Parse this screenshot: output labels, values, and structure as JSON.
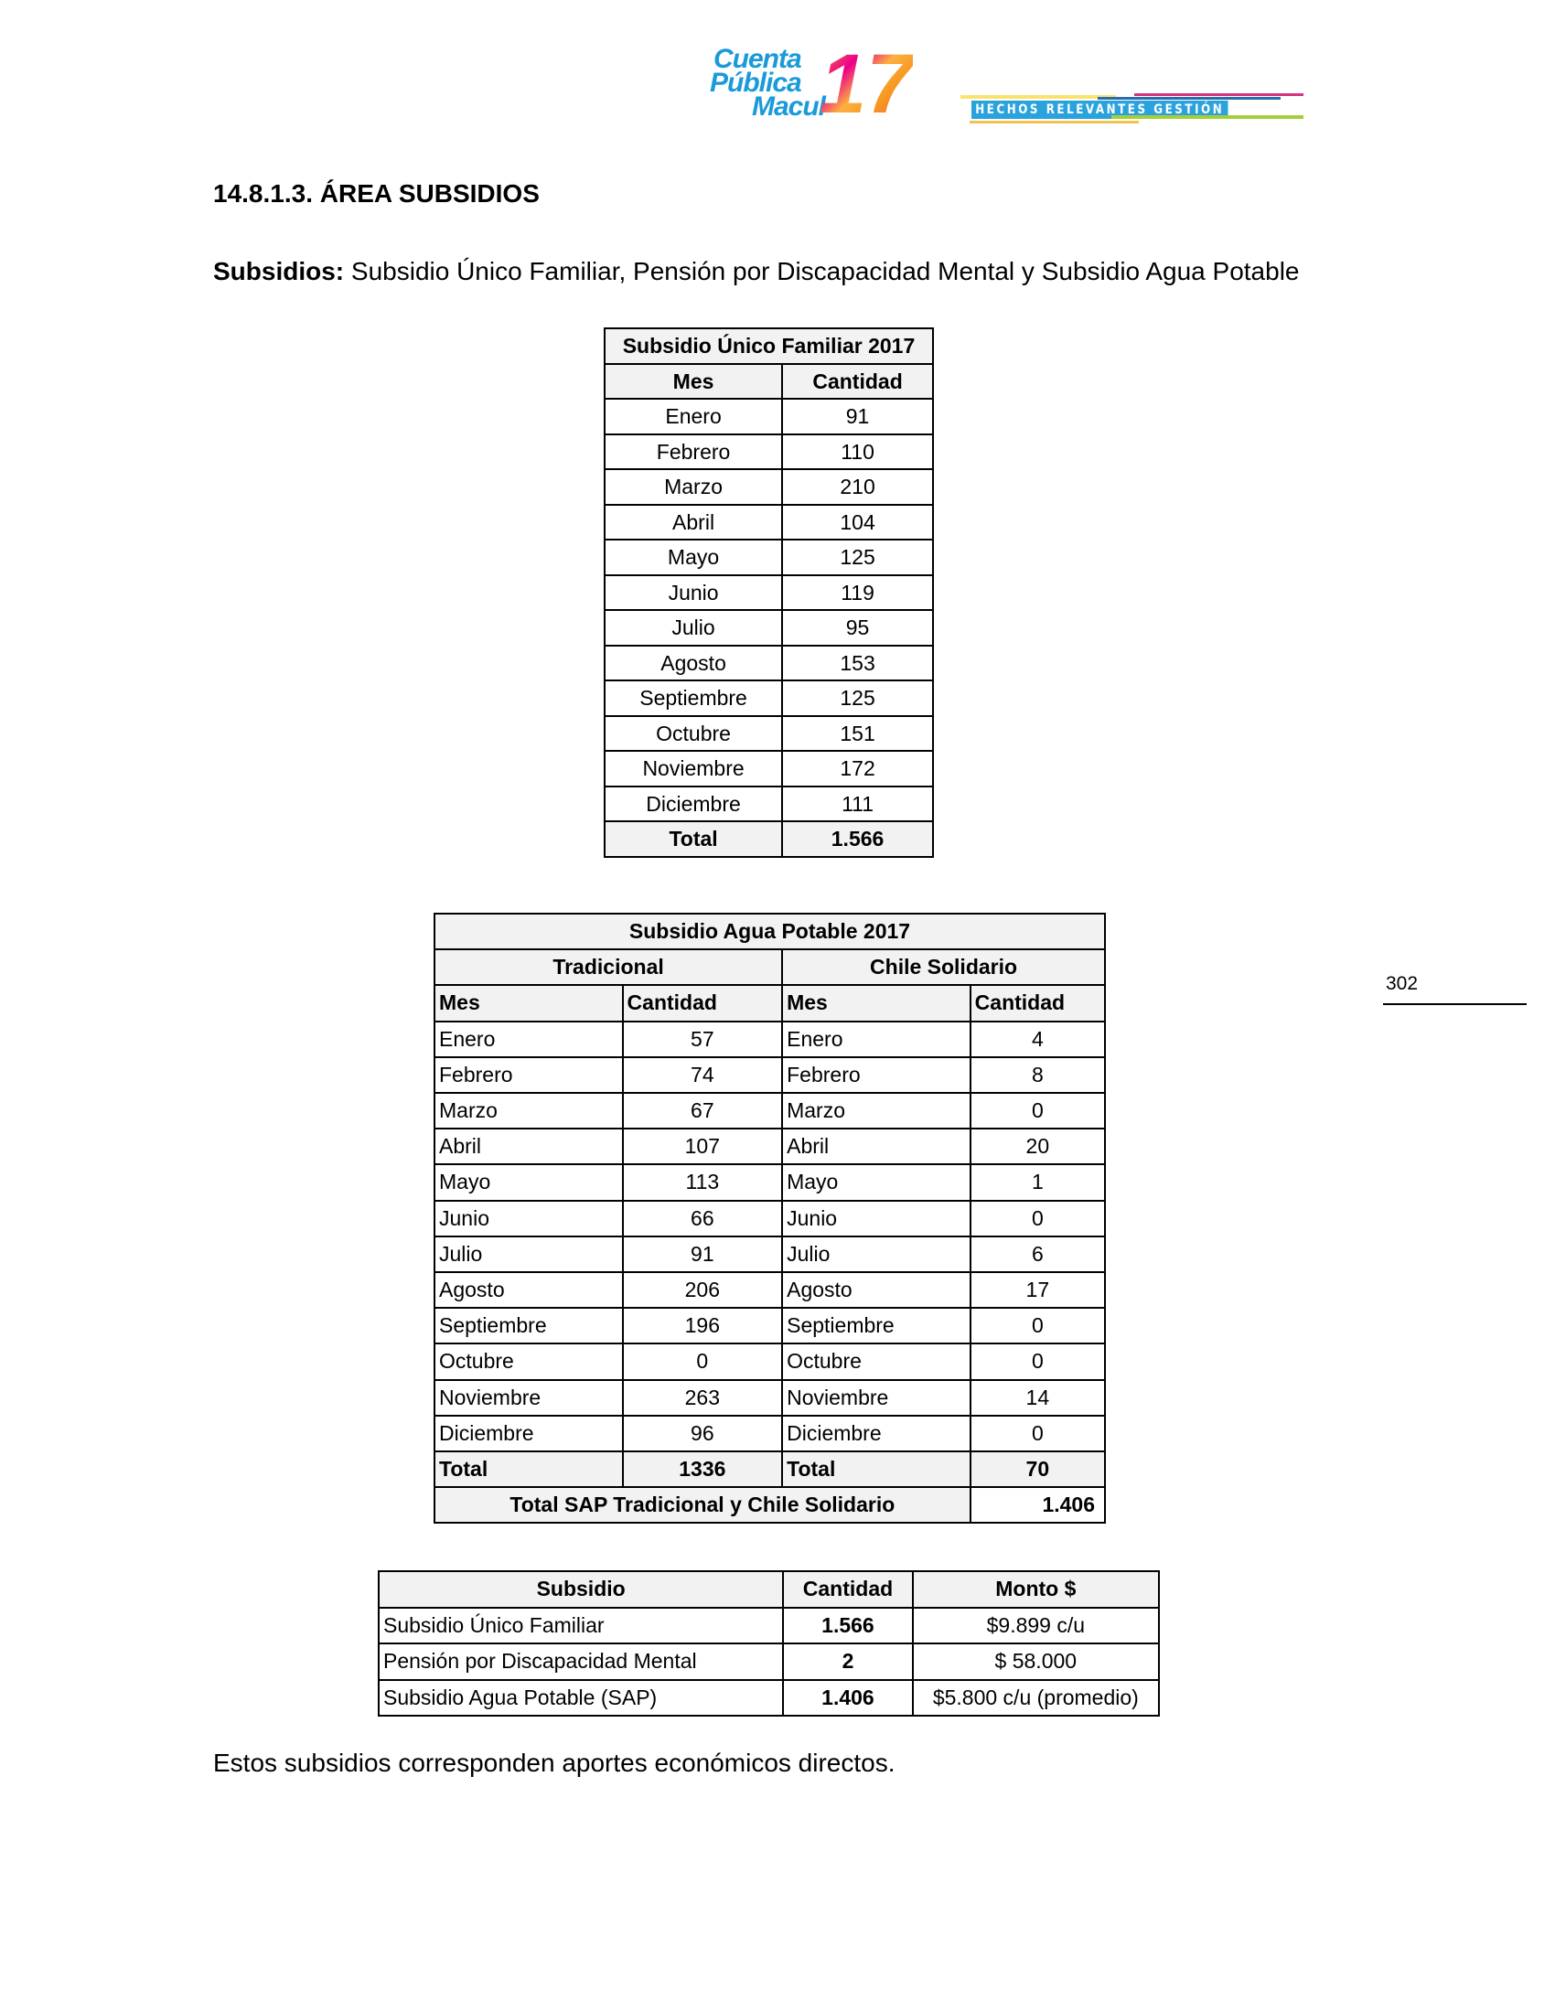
{
  "header": {
    "logo_text": [
      "Cuenta",
      "Pública",
      "Macul"
    ],
    "logo_number": "17",
    "banner_text": "HECHOS RELEVANTES GESTIÓN 2017",
    "colors": {
      "blue": "#1a9ad9",
      "orange": "#f7941d",
      "pink": "#ec008c",
      "yellow": "#fbe36b"
    }
  },
  "section_title": "14.8.1.3. ÁREA SUBSIDIOS",
  "intro": {
    "label": "Subsidios:",
    "text": " Subsidio Único Familiar, Pensión por Discapacidad Mental y Subsidio Agua Potable"
  },
  "table_suf": {
    "title": "Subsidio Único Familiar 2017",
    "headers": [
      "Mes",
      "Cantidad"
    ],
    "rows": [
      [
        "Enero",
        "91"
      ],
      [
        "Febrero",
        "110"
      ],
      [
        "Marzo",
        "210"
      ],
      [
        "Abril",
        "104"
      ],
      [
        "Mayo",
        "125"
      ],
      [
        "Junio",
        "119"
      ],
      [
        "Julio",
        "95"
      ],
      [
        "Agosto",
        "153"
      ],
      [
        "Septiembre",
        "125"
      ],
      [
        "Octubre",
        "151"
      ],
      [
        "Noviembre",
        "172"
      ],
      [
        "Diciembre",
        "111"
      ]
    ],
    "total": [
      "Total",
      "1.566"
    ]
  },
  "table_sap": {
    "title": "Subsidio Agua Potable 2017",
    "groups": [
      "Tradicional",
      "Chile Solidario"
    ],
    "headers": [
      "Mes",
      "Cantidad",
      "Mes",
      "Cantidad"
    ],
    "rows": [
      [
        "Enero",
        "57",
        "Enero",
        "4"
      ],
      [
        "Febrero",
        "74",
        "Febrero",
        "8"
      ],
      [
        "Marzo",
        "67",
        "Marzo",
        "0"
      ],
      [
        "Abril",
        "107",
        "Abril",
        "20"
      ],
      [
        "Mayo",
        "113",
        "Mayo",
        "1"
      ],
      [
        "Junio",
        "66",
        "Junio",
        "0"
      ],
      [
        "Julio",
        "91",
        "Julio",
        "6"
      ],
      [
        "Agosto",
        "206",
        "Agosto",
        "17"
      ],
      [
        "Septiembre",
        "196",
        "Septiembre",
        "0"
      ],
      [
        "Octubre",
        "0",
        "Octubre",
        "0"
      ],
      [
        "Noviembre",
        "263",
        "Noviembre",
        "14"
      ],
      [
        "Diciembre",
        "96",
        "Diciembre",
        "0"
      ]
    ],
    "total": [
      "Total",
      "1336",
      "Total",
      "70"
    ],
    "grand_total_label": "Total SAP Tradicional y Chile Solidario",
    "grand_total_value": "1.406"
  },
  "table_summary": {
    "headers": [
      "Subsidio",
      "Cantidad",
      "Monto $"
    ],
    "rows": [
      [
        "Subsidio Único Familiar",
        "1.566",
        "$9.899 c/u"
      ],
      [
        "Pensión por Discapacidad Mental",
        "2",
        "$ 58.000"
      ],
      [
        "Subsidio Agua Potable (SAP)",
        "1.406",
        "$5.800 c/u  (promedio)"
      ]
    ]
  },
  "outro": "Estos subsidios corresponden aportes económicos directos.",
  "page_number": "302"
}
